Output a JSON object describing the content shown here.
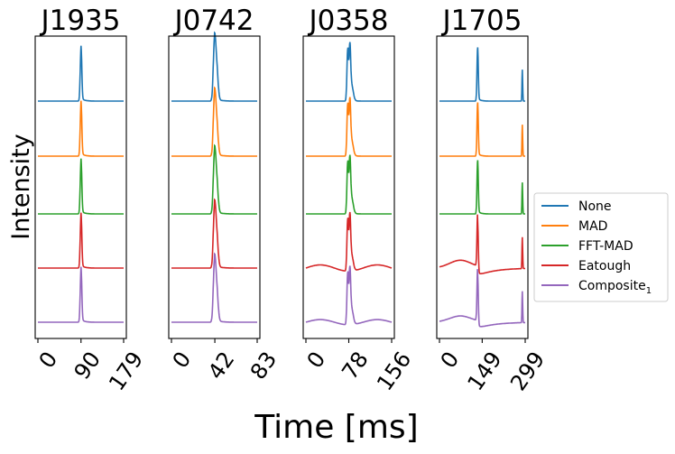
{
  "chart_data": {
    "type": "line",
    "ylabel": "Intensity",
    "xlabel": "Time [ms]",
    "series_names": [
      "None",
      "MAD",
      "FFT-MAD",
      "Eatough",
      "Composite"
    ],
    "legend": {
      "location": "center-right",
      "entries": [
        {
          "label": "None",
          "color": "#1f77b4"
        },
        {
          "label": "MAD",
          "color": "#ff7f0e"
        },
        {
          "label": "FFT-MAD",
          "color": "#2ca02c"
        },
        {
          "label": "Eatough",
          "color": "#d62728"
        },
        {
          "label": "Composite",
          "subscript": "1",
          "color": "#9467bd"
        }
      ]
    },
    "panels": [
      {
        "title": "J1935",
        "xlim": [
          0,
          179
        ],
        "xticks": [
          0,
          90,
          179
        ],
        "xtick_labels": [
          "0",
          "90",
          "179"
        ],
        "pulses": [
          {
            "center": 90,
            "height": 1.0,
            "width": 1.6
          }
        ],
        "distortions": []
      },
      {
        "title": "J0742",
        "xlim": [
          0,
          83
        ],
        "xticks": [
          0,
          42,
          83
        ],
        "xtick_labels": [
          "0",
          "42",
          "83"
        ],
        "pulses": [
          {
            "center": 41.5,
            "height": 0.95,
            "width": 1.1
          },
          {
            "center": 43.5,
            "height": 0.7,
            "width": 1.4
          }
        ],
        "distortions": []
      },
      {
        "title": "J0358",
        "xlim": [
          0,
          156
        ],
        "xticks": [
          0,
          78,
          156
        ],
        "xtick_labels": [
          "0",
          "78",
          "156"
        ],
        "pulses": [
          {
            "center": 76,
            "height": 0.95,
            "width": 1.4
          },
          {
            "center": 80,
            "height": 0.9,
            "width": 1.4
          },
          {
            "center": 83,
            "height": 0.3,
            "width": 3
          }
        ],
        "distortions": [
          {
            "series": 3,
            "type": "wobble",
            "amplitude": 0.06
          },
          {
            "series": 4,
            "type": "wobble",
            "amplitude": 0.05
          }
        ]
      },
      {
        "title": "J1705",
        "xlim": [
          0,
          299
        ],
        "xticks": [
          0,
          149,
          299
        ],
        "xtick_labels": [
          "0",
          "149",
          "299"
        ],
        "pulses": [
          {
            "center": 133,
            "height": 1.0,
            "width": 2.2
          },
          {
            "center": 289,
            "height": 0.6,
            "width": 1.2
          }
        ],
        "distortions": [
          {
            "series": 3,
            "type": "baseline_dip",
            "amplitude": 0.15
          },
          {
            "series": 4,
            "type": "baseline_dip",
            "amplitude": 0.12
          }
        ]
      }
    ]
  }
}
